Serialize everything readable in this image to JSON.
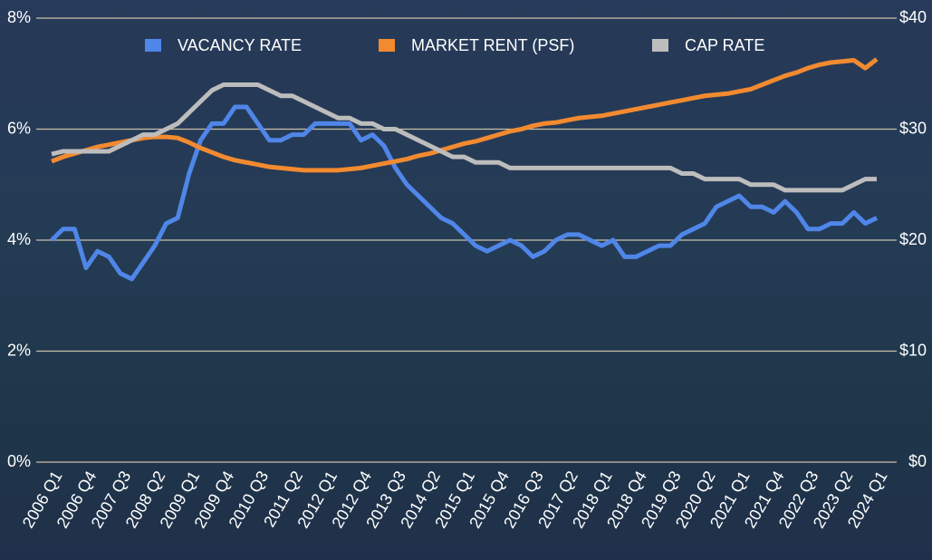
{
  "chart_data": {
    "type": "line",
    "categories": [
      "2006 Q1",
      null,
      null,
      "2006 Q4",
      null,
      null,
      "2007 Q3",
      null,
      null,
      "2008 Q2",
      null,
      null,
      "2009 Q1",
      null,
      null,
      "2009 Q4",
      null,
      null,
      "2010 Q3",
      null,
      null,
      "2011 Q2",
      null,
      null,
      "2012 Q1",
      null,
      null,
      "2012 Q4",
      null,
      null,
      "2013 Q3",
      null,
      null,
      "2014 Q2",
      null,
      null,
      "2015 Q1",
      null,
      null,
      "2015 Q4",
      null,
      null,
      "2016 Q3",
      null,
      null,
      "2017 Q2",
      null,
      null,
      "2018 Q1",
      null,
      null,
      "2018 Q4",
      null,
      null,
      "2019 Q3",
      null,
      null,
      "2020 Q2",
      null,
      null,
      "2021 Q1",
      null,
      null,
      "2021 Q4",
      null,
      null,
      "2022 Q3",
      null,
      null,
      "2023 Q2",
      null,
      null,
      "2024 Q1"
    ],
    "series": [
      {
        "name": "VACANCY RATE",
        "color": "#4f86e8",
        "axis": "y",
        "values": [
          4.0,
          4.2,
          4.2,
          3.5,
          3.8,
          3.7,
          3.4,
          3.3,
          3.6,
          3.9,
          4.3,
          4.4,
          5.2,
          5.8,
          6.1,
          6.1,
          6.4,
          6.4,
          6.1,
          5.8,
          5.8,
          5.9,
          5.9,
          6.1,
          6.1,
          6.1,
          6.1,
          5.8,
          5.9,
          5.7,
          5.3,
          5.0,
          4.8,
          4.6,
          4.4,
          4.3,
          4.1,
          3.9,
          3.8,
          3.9,
          4.0,
          3.9,
          3.7,
          3.8,
          4.0,
          4.1,
          4.1,
          4.0,
          3.9,
          4.0,
          3.7,
          3.7,
          3.8,
          3.9,
          3.9,
          4.1,
          4.2,
          4.3,
          4.6,
          4.7,
          4.8,
          4.6,
          4.6,
          4.5,
          4.7,
          4.5,
          4.2,
          4.2,
          4.3,
          4.3,
          4.5,
          4.3,
          4.4
        ]
      },
      {
        "name": "MARKET RENT (PSF)",
        "color": "#f28a30",
        "axis": "y2",
        "values": [
          27.1,
          27.5,
          27.8,
          28.1,
          28.4,
          28.6,
          28.8,
          29.0,
          29.2,
          29.3,
          29.3,
          29.2,
          28.8,
          28.3,
          27.9,
          27.5,
          27.2,
          27.0,
          26.8,
          26.6,
          26.5,
          26.4,
          26.3,
          26.3,
          26.3,
          26.3,
          26.4,
          26.5,
          26.7,
          26.9,
          27.1,
          27.3,
          27.6,
          27.8,
          28.1,
          28.4,
          28.7,
          28.9,
          29.2,
          29.5,
          29.8,
          30.0,
          30.3,
          30.5,
          30.6,
          30.8,
          31.0,
          31.1,
          31.2,
          31.4,
          31.6,
          31.8,
          32.0,
          32.2,
          32.4,
          32.6,
          32.8,
          33.0,
          33.1,
          33.2,
          33.4,
          33.6,
          34.0,
          34.4,
          34.8,
          35.1,
          35.5,
          35.8,
          36.0,
          36.1,
          36.2,
          35.5,
          36.3
        ]
      },
      {
        "name": "CAP RATE",
        "color": "#bdbdbd",
        "axis": "y",
        "values": [
          5.55,
          5.6,
          5.6,
          5.6,
          5.6,
          5.6,
          5.7,
          5.8,
          5.9,
          5.9,
          6.0,
          6.1,
          6.3,
          6.5,
          6.7,
          6.8,
          6.8,
          6.8,
          6.8,
          6.7,
          6.6,
          6.6,
          6.5,
          6.4,
          6.3,
          6.2,
          6.2,
          6.1,
          6.1,
          6.0,
          6.0,
          5.9,
          5.8,
          5.7,
          5.6,
          5.5,
          5.5,
          5.4,
          5.4,
          5.4,
          5.3,
          5.3,
          5.3,
          5.3,
          5.3,
          5.3,
          5.3,
          5.3,
          5.3,
          5.3,
          5.3,
          5.3,
          5.3,
          5.3,
          5.3,
          5.2,
          5.2,
          5.1,
          5.1,
          5.1,
          5.1,
          5.0,
          5.0,
          5.0,
          4.9,
          4.9,
          4.9,
          4.9,
          4.9,
          4.9,
          5.0,
          5.1,
          5.1
        ]
      }
    ],
    "ylim": [
      0,
      8
    ],
    "yticks": [
      {
        "value": 0,
        "label": "0%"
      },
      {
        "value": 2,
        "label": "2%"
      },
      {
        "value": 4,
        "label": "4%"
      },
      {
        "value": 6,
        "label": "6%"
      },
      {
        "value": 8,
        "label": "8%"
      }
    ],
    "y2lim": [
      0,
      40
    ],
    "y2ticks": [
      {
        "value": 0,
        "label": "$0"
      },
      {
        "value": 10,
        "label": "$10"
      },
      {
        "value": 20,
        "label": "$20"
      },
      {
        "value": 30,
        "label": "$30"
      },
      {
        "value": 40,
        "label": "$40"
      }
    ],
    "grid": true
  }
}
